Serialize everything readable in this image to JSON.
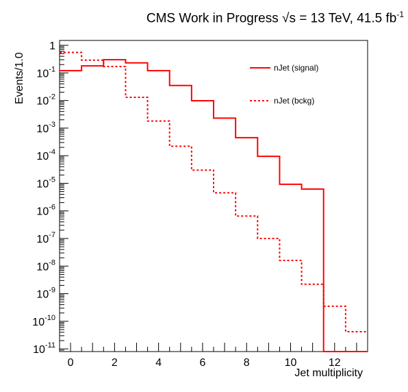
{
  "title": {
    "main": "CMS Work in Progress",
    "energy_prefix": "s = 13 TeV, 41.5 fb",
    "sqrt_symbol": "√",
    "lumi_exp": "-1"
  },
  "chart_data": {
    "type": "histogram",
    "xlabel": "Jet multiplicity",
    "ylabel": "Events/1.0",
    "xlim": [
      -0.5,
      13.5
    ],
    "ylim": [
      8e-12,
      1.5
    ],
    "yscale": "log",
    "x_ticks": [
      0,
      2,
      4,
      6,
      8,
      10,
      12
    ],
    "y_ticks": [
      {
        "value": 1,
        "label": "1",
        "exp": ""
      },
      {
        "value": 0.1,
        "label": "10",
        "exp": "-1"
      },
      {
        "value": 0.01,
        "label": "10",
        "exp": "-2"
      },
      {
        "value": 0.001,
        "label": "10",
        "exp": "-3"
      },
      {
        "value": 0.0001,
        "label": "10",
        "exp": "-4"
      },
      {
        "value": 1e-05,
        "label": "10",
        "exp": "-5"
      },
      {
        "value": 1e-06,
        "label": "10",
        "exp": "-6"
      },
      {
        "value": 1e-07,
        "label": "10",
        "exp": "-7"
      },
      {
        "value": 1e-08,
        "label": "10",
        "exp": "-8"
      },
      {
        "value": 1e-09,
        "label": "10",
        "exp": "-9"
      },
      {
        "value": 1e-10,
        "label": "10",
        "exp": "-10"
      },
      {
        "value": 1e-11,
        "label": "10",
        "exp": "-11"
      }
    ],
    "bin_edges": [
      -0.5,
      0.5,
      1.5,
      2.5,
      3.5,
      4.5,
      5.5,
      6.5,
      7.5,
      8.5,
      9.5,
      10.5,
      11.5,
      12.5,
      13.5
    ],
    "series": [
      {
        "name": "nJet (signal)",
        "style": "solid",
        "color": "#ff0000",
        "values": [
          0.12,
          0.18,
          0.3,
          0.23,
          0.12,
          0.035,
          0.0098,
          0.0023,
          0.00045,
          9.5e-05,
          9.2e-06,
          6.2e-06,
          0,
          0
        ]
      },
      {
        "name": "nJet (bckg)",
        "style": "dashed",
        "color": "#ff0000",
        "values": [
          0.55,
          0.29,
          0.17,
          0.013,
          0.0018,
          0.00022,
          3e-05,
          4.5e-06,
          6.5e-07,
          1e-07,
          1.6e-08,
          2.2e-09,
          3.5e-10,
          4.2e-11
        ]
      }
    ],
    "legend_placement": "top-right"
  }
}
